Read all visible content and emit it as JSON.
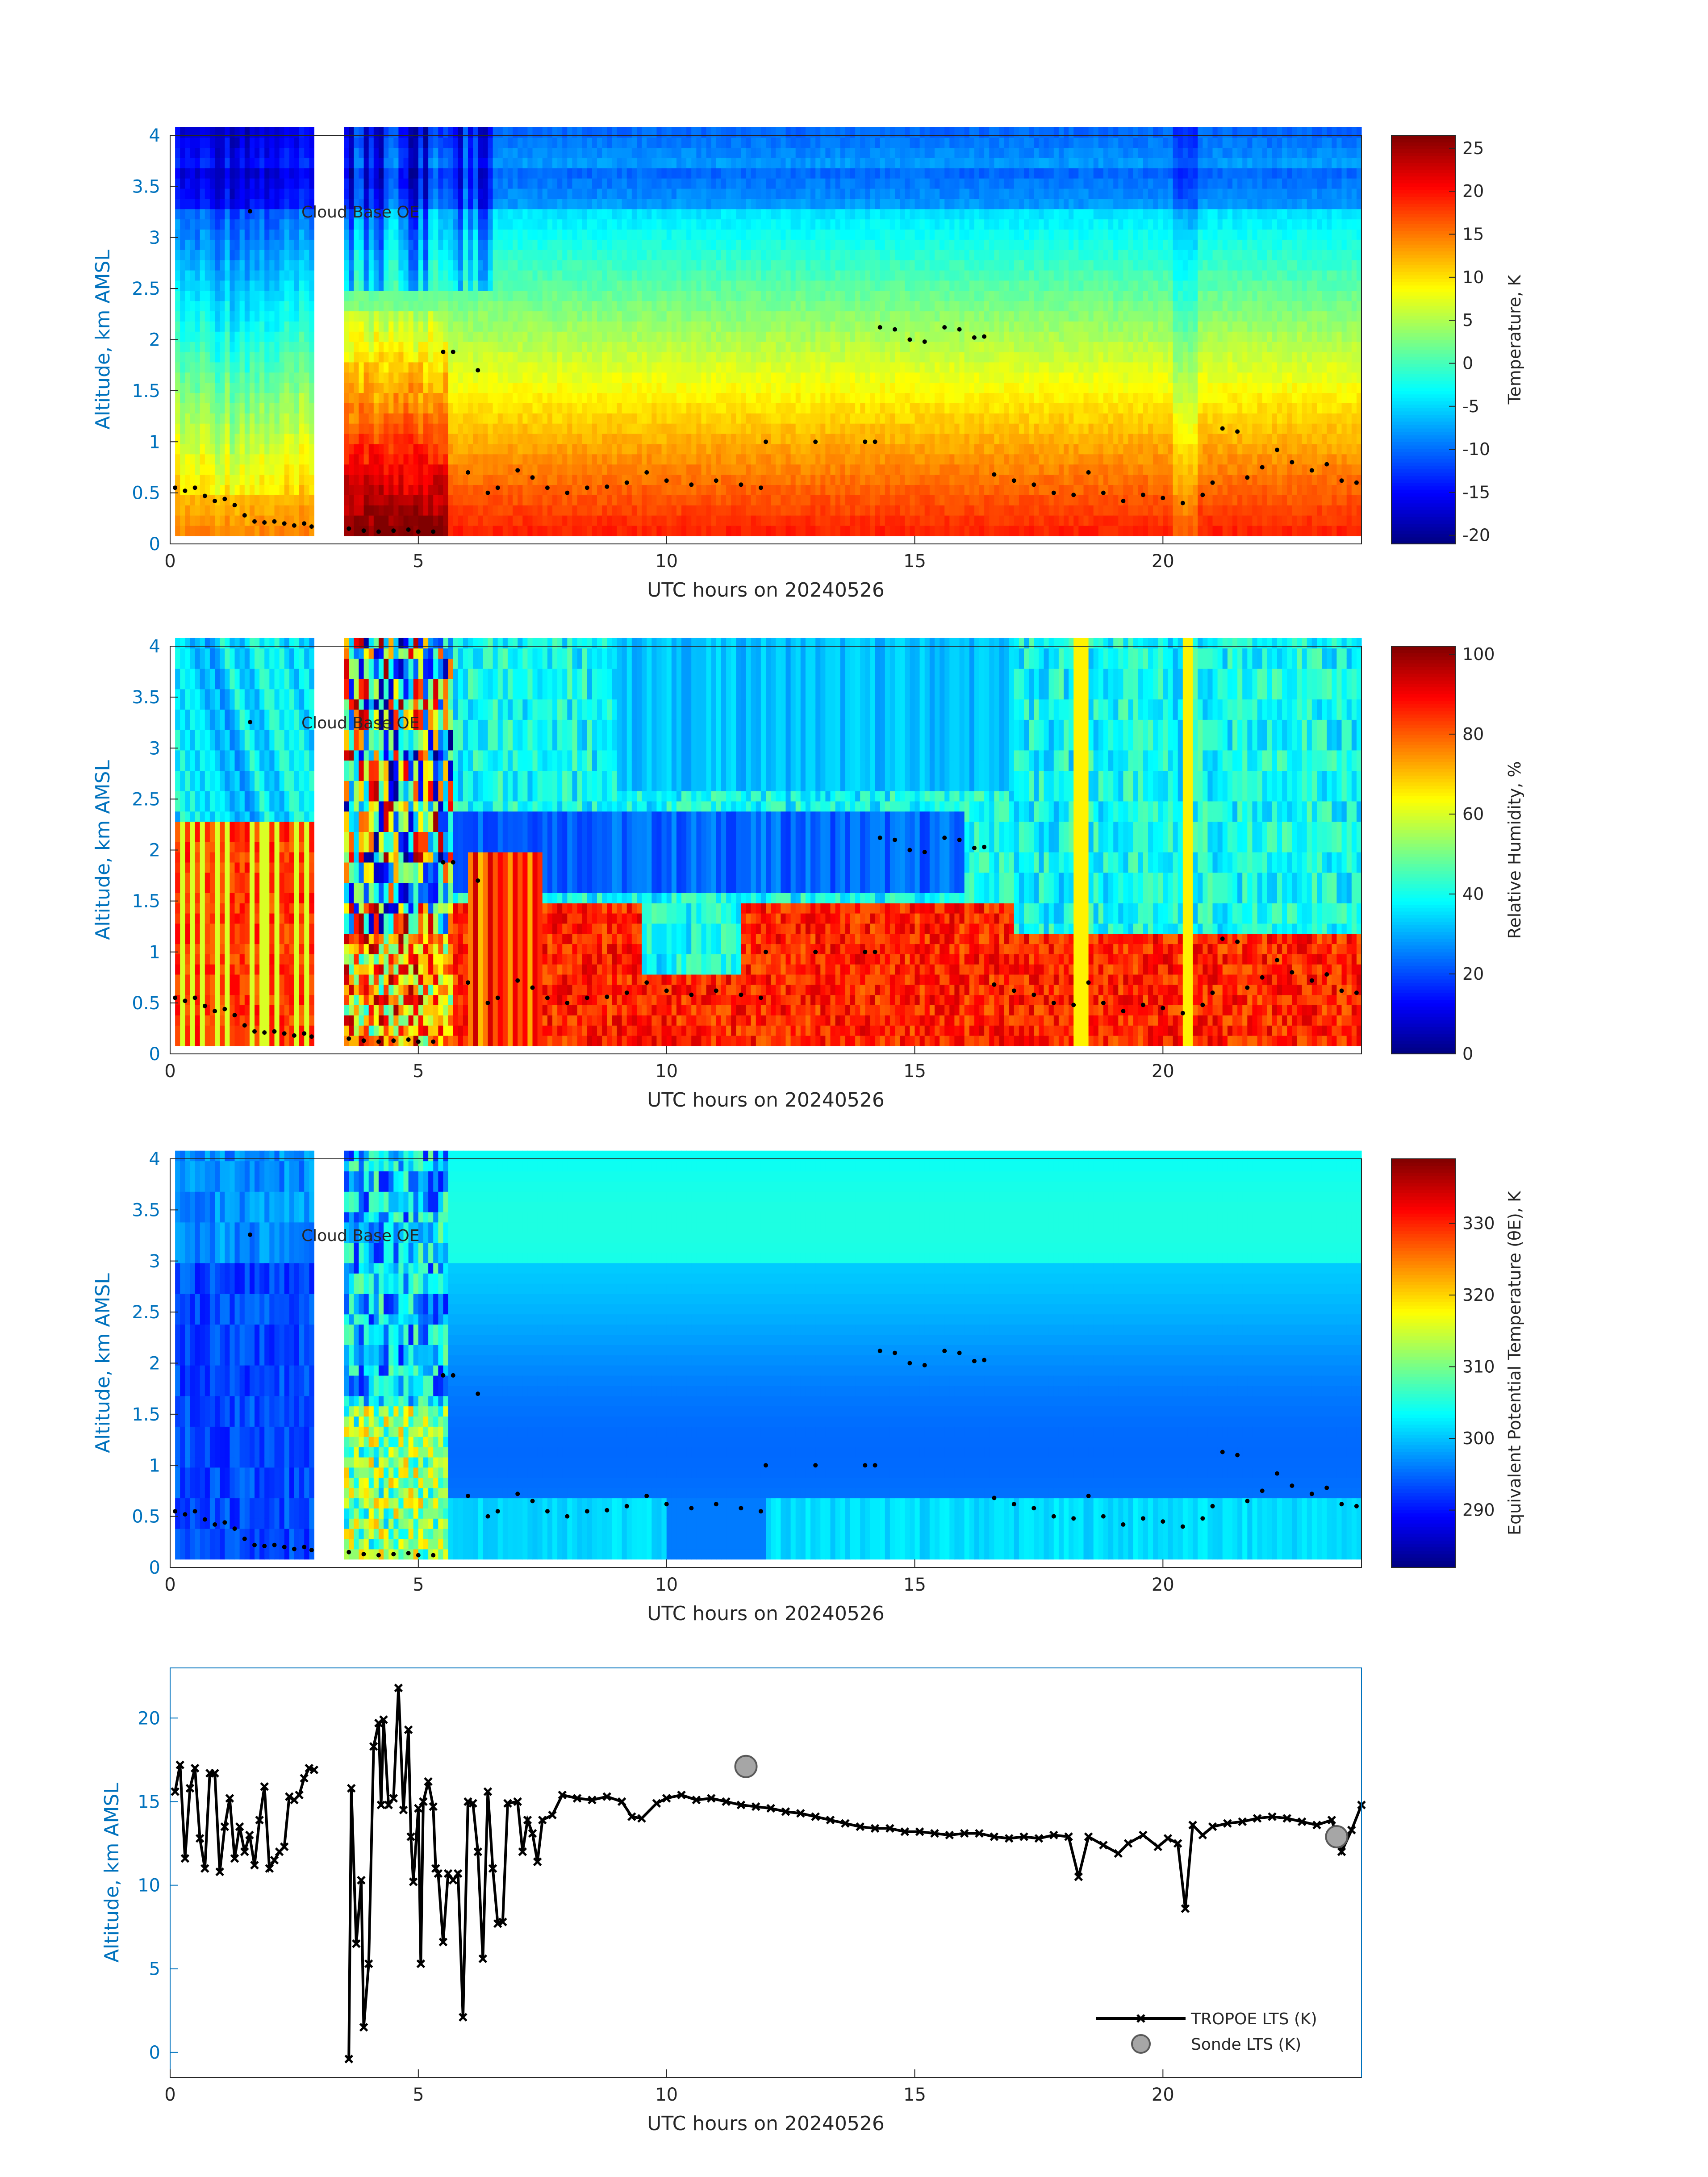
{
  "figure": {
    "xlabel": "UTC hours on 20240526",
    "xticks": [
      "0",
      "5",
      "10",
      "15",
      "20"
    ],
    "ylabel": "Altitude, km AMSL"
  },
  "chart_data": [
    {
      "type": "heatmap",
      "title": "",
      "xlabel": "UTC hours on 20240526",
      "ylabel": "Altitude, km AMSL",
      "xlim": [
        0,
        24
      ],
      "ylim": [
        0,
        4
      ],
      "yticks": [
        "0",
        "0.5",
        "1",
        "1.5",
        "2",
        "2.5",
        "3",
        "3.5",
        "4"
      ],
      "colorbar": {
        "label": "Temperature, K",
        "range": [
          -21,
          26.5
        ],
        "ticks": [
          "-20",
          "-15",
          "-10",
          "-5",
          "0",
          "5",
          "10",
          "15",
          "20",
          "25"
        ],
        "colormap": "jet"
      },
      "legend": {
        "entries": [
          "Cloud Base OE"
        ],
        "position": "upper-left"
      },
      "field_description": "surface ~20 at 0.1 km decreasing to about -10 near 4 km; data gap 2.9–3.5 h",
      "cloud_base_oe": [
        [
          0.1,
          0.55
        ],
        [
          0.3,
          0.52
        ],
        [
          0.5,
          0.55
        ],
        [
          0.7,
          0.47
        ],
        [
          0.9,
          0.42
        ],
        [
          1.1,
          0.44
        ],
        [
          1.3,
          0.38
        ],
        [
          1.5,
          0.28
        ],
        [
          1.7,
          0.22
        ],
        [
          1.9,
          0.21
        ],
        [
          2.1,
          0.22
        ],
        [
          2.3,
          0.2
        ],
        [
          2.5,
          0.18
        ],
        [
          2.7,
          0.2
        ],
        [
          2.85,
          0.17
        ],
        [
          3.6,
          0.15
        ],
        [
          3.9,
          0.13
        ],
        [
          4.2,
          0.12
        ],
        [
          4.5,
          0.13
        ],
        [
          4.8,
          0.14
        ],
        [
          5.0,
          0.12
        ],
        [
          5.3,
          0.12
        ],
        [
          5.5,
          1.88
        ],
        [
          5.7,
          1.88
        ],
        [
          6.2,
          1.7
        ],
        [
          6.0,
          0.7
        ],
        [
          6.4,
          0.5
        ],
        [
          6.6,
          0.55
        ],
        [
          7.0,
          0.72
        ],
        [
          7.3,
          0.65
        ],
        [
          7.6,
          0.55
        ],
        [
          8.0,
          0.5
        ],
        [
          8.4,
          0.55
        ],
        [
          8.8,
          0.56
        ],
        [
          9.2,
          0.6
        ],
        [
          9.6,
          0.7
        ],
        [
          10.0,
          0.62
        ],
        [
          10.5,
          0.58
        ],
        [
          11.0,
          0.62
        ],
        [
          11.5,
          0.58
        ],
        [
          11.9,
          0.55
        ],
        [
          12.0,
          1.0
        ],
        [
          13.0,
          1.0
        ],
        [
          14.0,
          1.0
        ],
        [
          14.2,
          1.0
        ],
        [
          14.3,
          2.12
        ],
        [
          14.6,
          2.1
        ],
        [
          14.9,
          2.0
        ],
        [
          15.2,
          1.98
        ],
        [
          15.6,
          2.12
        ],
        [
          15.9,
          2.1
        ],
        [
          16.2,
          2.02
        ],
        [
          16.4,
          2.03
        ],
        [
          16.6,
          0.68
        ],
        [
          17.0,
          0.62
        ],
        [
          17.4,
          0.58
        ],
        [
          17.8,
          0.5
        ],
        [
          18.2,
          0.48
        ],
        [
          18.5,
          0.7
        ],
        [
          18.8,
          0.5
        ],
        [
          19.2,
          0.42
        ],
        [
          19.6,
          0.48
        ],
        [
          20.0,
          0.45
        ],
        [
          20.4,
          0.4
        ],
        [
          20.8,
          0.48
        ],
        [
          21.0,
          0.6
        ],
        [
          21.2,
          1.13
        ],
        [
          21.5,
          1.1
        ],
        [
          21.7,
          0.65
        ],
        [
          22.0,
          0.75
        ],
        [
          22.3,
          0.92
        ],
        [
          22.6,
          0.8
        ],
        [
          23.0,
          0.72
        ],
        [
          23.3,
          0.78
        ],
        [
          23.6,
          0.62
        ],
        [
          23.9,
          0.6
        ]
      ]
    },
    {
      "type": "heatmap",
      "title": "",
      "xlabel": "UTC hours on 20240526",
      "ylabel": "Altitude, km AMSL",
      "xlim": [
        0,
        24
      ],
      "ylim": [
        0,
        4
      ],
      "yticks": [
        "0",
        "0.5",
        "1",
        "1.5",
        "2",
        "2.5",
        "3",
        "3.5",
        "4"
      ],
      "colorbar": {
        "label": "Relative Humidity, %",
        "range": [
          0,
          102
        ],
        "ticks": [
          "0",
          "20",
          "40",
          "60",
          "80",
          "100"
        ],
        "colormap": "jet"
      },
      "legend": {
        "entries": [
          "Cloud Base OE"
        ],
        "position": "upper-left"
      },
      "field_description": "high RH (80–100) below ~1.2 km, low RH (10–40) aloft; data gap 2.9–3.5 h"
    },
    {
      "type": "heatmap",
      "title": "",
      "xlabel": "UTC hours on 20240526",
      "ylabel": "Altitude, km AMSL",
      "xlim": [
        0,
        24
      ],
      "ylim": [
        0,
        4
      ],
      "yticks": [
        "0",
        "0.5",
        "1",
        "1.5",
        "2",
        "2.5",
        "3",
        "3.5",
        "4"
      ],
      "colorbar": {
        "label": "Equivalent Potential Temperature (θE), K",
        "range": [
          282,
          339
        ],
        "ticks": [
          "290",
          "300",
          "310",
          "320",
          "330"
        ],
        "colormap": "jet"
      },
      "legend": {
        "entries": [
          "Cloud Base OE"
        ],
        "position": "upper-left"
      },
      "field_description": "mostly 295–305 K; warmer 310–325 K near 4–5 h below 1.5 km; data gap 2.9–3.5 h"
    },
    {
      "type": "line",
      "title": "",
      "xlabel": "UTC hours on 20240526",
      "ylabel": "Altitude, km AMSL",
      "xlim": [
        0,
        24
      ],
      "ylim": [
        -1.5,
        23
      ],
      "yticks": [
        "0",
        "5",
        "10",
        "15",
        "20"
      ],
      "legend": {
        "entries": [
          "TROPOE LTS (K)",
          "Sonde LTS (K)"
        ],
        "position": "bottom-right"
      },
      "series": [
        {
          "name": "TROPOE LTS (K)",
          "points": [
            [
              0.1,
              15.6
            ],
            [
              0.2,
              17.2
            ],
            [
              0.3,
              11.6
            ],
            [
              0.4,
              15.8
            ],
            [
              0.5,
              17.0
            ],
            [
              0.6,
              12.8
            ],
            [
              0.7,
              11.0
            ],
            [
              0.8,
              16.7
            ],
            [
              0.9,
              16.7
            ],
            [
              1.0,
              10.8
            ],
            [
              1.1,
              13.5
            ],
            [
              1.2,
              15.2
            ],
            [
              1.3,
              11.6
            ],
            [
              1.4,
              13.5
            ],
            [
              1.5,
              12.0
            ],
            [
              1.6,
              13.0
            ],
            [
              1.7,
              11.2
            ],
            [
              1.8,
              13.9
            ],
            [
              1.9,
              15.9
            ],
            [
              2.0,
              11.0
            ],
            [
              2.1,
              11.5
            ],
            [
              2.2,
              12.0
            ],
            [
              2.3,
              12.3
            ],
            [
              2.4,
              15.3
            ],
            [
              2.5,
              15.1
            ],
            [
              2.6,
              15.4
            ],
            [
              2.7,
              16.4
            ],
            [
              2.8,
              17.0
            ],
            [
              2.9,
              16.9
            ],
            [
              3.6,
              -0.4
            ],
            [
              3.65,
              15.8
            ],
            [
              3.75,
              6.5
            ],
            [
              3.85,
              10.3
            ],
            [
              3.9,
              1.5
            ],
            [
              4.0,
              5.3
            ],
            [
              4.1,
              18.3
            ],
            [
              4.2,
              19.7
            ],
            [
              4.25,
              14.8
            ],
            [
              4.3,
              19.9
            ],
            [
              4.4,
              14.8
            ],
            [
              4.5,
              15.2
            ],
            [
              4.6,
              21.8
            ],
            [
              4.7,
              14.5
            ],
            [
              4.8,
              19.3
            ],
            [
              4.85,
              12.9
            ],
            [
              4.9,
              10.2
            ],
            [
              5.0,
              14.6
            ],
            [
              5.05,
              5.3
            ],
            [
              5.1,
              15.0
            ],
            [
              5.2,
              16.2
            ],
            [
              5.3,
              14.7
            ],
            [
              5.35,
              11.0
            ],
            [
              5.4,
              10.7
            ],
            [
              5.5,
              6.6
            ],
            [
              5.6,
              10.7
            ],
            [
              5.7,
              10.3
            ],
            [
              5.8,
              10.7
            ],
            [
              5.9,
              2.1
            ],
            [
              6.0,
              15.0
            ],
            [
              6.1,
              14.9
            ],
            [
              6.2,
              12.0
            ],
            [
              6.3,
              5.6
            ],
            [
              6.4,
              15.6
            ],
            [
              6.5,
              11.0
            ],
            [
              6.6,
              7.7
            ],
            [
              6.7,
              7.8
            ],
            [
              6.8,
              14.9
            ],
            [
              7.0,
              15.0
            ],
            [
              7.1,
              12.0
            ],
            [
              7.2,
              13.9
            ],
            [
              7.3,
              13.1
            ],
            [
              7.4,
              11.4
            ],
            [
              7.5,
              13.9
            ],
            [
              7.7,
              14.2
            ],
            [
              7.9,
              15.4
            ],
            [
              8.2,
              15.2
            ],
            [
              8.5,
              15.1
            ],
            [
              8.8,
              15.3
            ],
            [
              9.1,
              15.0
            ],
            [
              9.3,
              14.1
            ],
            [
              9.5,
              14.0
            ],
            [
              9.8,
              14.9
            ],
            [
              10.0,
              15.2
            ],
            [
              10.3,
              15.4
            ],
            [
              10.6,
              15.1
            ],
            [
              10.9,
              15.2
            ],
            [
              11.2,
              15.0
            ],
            [
              11.5,
              14.8
            ],
            [
              11.8,
              14.7
            ],
            [
              12.1,
              14.6
            ],
            [
              12.4,
              14.4
            ],
            [
              12.7,
              14.3
            ],
            [
              13.0,
              14.1
            ],
            [
              13.3,
              13.9
            ],
            [
              13.6,
              13.7
            ],
            [
              13.9,
              13.5
            ],
            [
              14.2,
              13.4
            ],
            [
              14.5,
              13.4
            ],
            [
              14.8,
              13.2
            ],
            [
              15.1,
              13.2
            ],
            [
              15.4,
              13.1
            ],
            [
              15.7,
              13.0
            ],
            [
              16.0,
              13.1
            ],
            [
              16.3,
              13.1
            ],
            [
              16.6,
              12.9
            ],
            [
              16.9,
              12.8
            ],
            [
              17.2,
              12.9
            ],
            [
              17.5,
              12.8
            ],
            [
              17.8,
              13.0
            ],
            [
              18.1,
              12.9
            ],
            [
              18.3,
              10.5
            ],
            [
              18.5,
              12.9
            ],
            [
              18.8,
              12.4
            ],
            [
              19.1,
              11.9
            ],
            [
              19.3,
              12.5
            ],
            [
              19.6,
              13.0
            ],
            [
              19.9,
              12.3
            ],
            [
              20.1,
              12.8
            ],
            [
              20.3,
              12.5
            ],
            [
              20.45,
              8.6
            ],
            [
              20.6,
              13.6
            ],
            [
              20.8,
              13.0
            ],
            [
              21.0,
              13.5
            ],
            [
              21.3,
              13.7
            ],
            [
              21.6,
              13.8
            ],
            [
              21.9,
              14.0
            ],
            [
              22.2,
              14.1
            ],
            [
              22.5,
              14.0
            ],
            [
              22.8,
              13.8
            ],
            [
              23.1,
              13.6
            ],
            [
              23.4,
              13.9
            ],
            [
              23.6,
              12.0
            ],
            [
              23.8,
              13.3
            ],
            [
              24.0,
              14.8
            ]
          ]
        },
        {
          "name": "Sonde LTS (K)",
          "points": [
            [
              11.6,
              17.1
            ],
            [
              23.5,
              12.9
            ]
          ]
        }
      ]
    }
  ]
}
